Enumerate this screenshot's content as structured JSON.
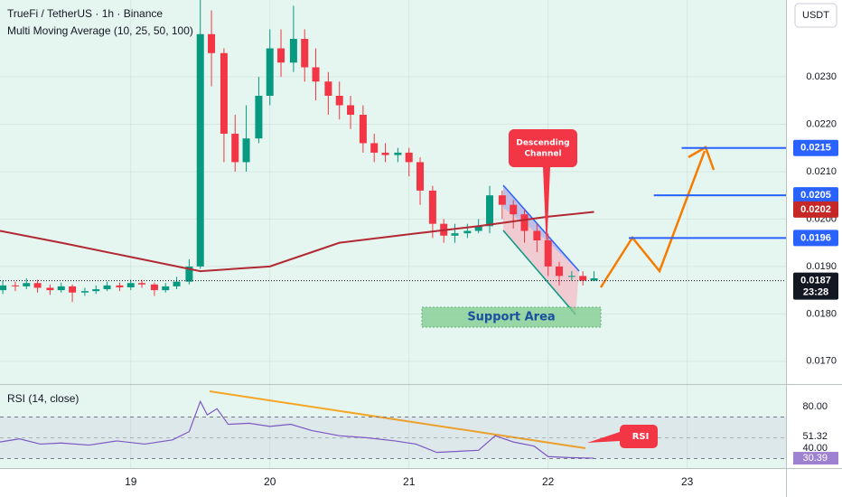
{
  "chart_data": [
    {
      "type": "candlestick",
      "title": "TrueFi / TetherUS · 1h · Binance",
      "subtitle": "Multi Moving Average (10, 25, 50, 100)",
      "unit": "USDT",
      "xlim": [
        18.06,
        23.71
      ],
      "xticks": [
        19,
        20,
        21,
        22,
        23
      ],
      "ylim": [
        0.01652,
        0.02462
      ],
      "yticks": [
        {
          "value": 0.017,
          "label": "0.0170"
        },
        {
          "value": 0.018,
          "label": "0.0180"
        },
        {
          "value": 0.019,
          "label": "0.0190"
        },
        {
          "value": 0.02,
          "label": "0.0200"
        },
        {
          "value": 0.021,
          "label": "0.0210"
        },
        {
          "value": 0.022,
          "label": "0.0220"
        },
        {
          "value": 0.023,
          "label": "0.0230"
        }
      ],
      "grid": true,
      "up_color": "#089981",
      "down_color": "#f23645",
      "candles": {
        "x": [
          18.08,
          18.17,
          18.25,
          18.33,
          18.42,
          18.5,
          18.58,
          18.67,
          18.75,
          18.83,
          18.92,
          19,
          19.08,
          19.17,
          19.25,
          19.33,
          19.42,
          19.5,
          19.58,
          19.67,
          19.75,
          19.83,
          19.92,
          20,
          20.08,
          20.17,
          20.25,
          20.33,
          20.42,
          20.5,
          20.58,
          20.67,
          20.75,
          20.83,
          20.92,
          21,
          21.08,
          21.17,
          21.25,
          21.33,
          21.42,
          21.5,
          21.58,
          21.67,
          21.75,
          21.83,
          21.92,
          22,
          22.08,
          22.17,
          22.25,
          22.33
        ],
        "open": [
          0.0185,
          0.0186,
          0.01858,
          0.01865,
          0.01855,
          0.0185,
          0.01858,
          0.01845,
          0.01848,
          0.01852,
          0.0186,
          0.01856,
          0.01865,
          0.01862,
          0.0185,
          0.01858,
          0.01868,
          0.019,
          0.0239,
          0.0235,
          0.0218,
          0.0212,
          0.0217,
          0.0226,
          0.0236,
          0.0233,
          0.0238,
          0.0232,
          0.0229,
          0.0226,
          0.0224,
          0.0222,
          0.0216,
          0.0214,
          0.02135,
          0.0214,
          0.0212,
          0.0206,
          0.0199,
          0.01965,
          0.0197,
          0.01975,
          0.01985,
          0.0205,
          0.0203,
          0.0201,
          0.01975,
          0.01955,
          0.019,
          0.0188,
          0.0188,
          0.0187
        ],
        "high": [
          0.0187,
          0.01868,
          0.01875,
          0.01872,
          0.01862,
          0.01866,
          0.01862,
          0.01855,
          0.0186,
          0.01868,
          0.01866,
          0.01872,
          0.01872,
          0.01866,
          0.01865,
          0.01878,
          0.01915,
          0.0247,
          0.0244,
          0.0236,
          0.0222,
          0.0224,
          0.023,
          0.024,
          0.024,
          0.0245,
          0.024,
          0.0236,
          0.0231,
          0.0229,
          0.0226,
          0.0224,
          0.0218,
          0.0216,
          0.0215,
          0.0215,
          0.0213,
          0.0207,
          0.02,
          0.0199,
          0.0199,
          0.02,
          0.0207,
          0.0206,
          0.0204,
          0.0202,
          0.0199,
          0.0197,
          0.0191,
          0.0189,
          0.0189,
          0.0189
        ],
        "low": [
          0.01842,
          0.01848,
          0.01852,
          0.01845,
          0.0184,
          0.01845,
          0.01825,
          0.01838,
          0.01842,
          0.01848,
          0.01848,
          0.0185,
          0.01855,
          0.01838,
          0.01845,
          0.01852,
          0.01862,
          0.01895,
          0.0228,
          0.0212,
          0.021,
          0.021,
          0.0216,
          0.0224,
          0.023,
          0.0231,
          0.0229,
          0.0225,
          0.0222,
          0.0221,
          0.0219,
          0.0214,
          0.0212,
          0.0212,
          0.0212,
          0.0209,
          0.0203,
          0.0196,
          0.0195,
          0.0195,
          0.0196,
          0.0197,
          0.0197,
          0.02,
          0.0198,
          0.0195,
          0.0193,
          0.0188,
          0.0186,
          0.0187,
          0.0186,
          0.0187
        ],
        "close": [
          0.0186,
          0.01858,
          0.01865,
          0.01855,
          0.0185,
          0.01858,
          0.01845,
          0.01848,
          0.01852,
          0.0186,
          0.01856,
          0.01865,
          0.01862,
          0.0185,
          0.01858,
          0.01868,
          0.019,
          0.0239,
          0.0235,
          0.0218,
          0.0212,
          0.0217,
          0.0226,
          0.0236,
          0.0233,
          0.0238,
          0.0232,
          0.0229,
          0.0226,
          0.0224,
          0.0222,
          0.0216,
          0.0214,
          0.02135,
          0.0214,
          0.0212,
          0.0206,
          0.0199,
          0.01965,
          0.0197,
          0.01975,
          0.01985,
          0.0205,
          0.0203,
          0.0201,
          0.01975,
          0.01955,
          0.019,
          0.0188,
          0.0188,
          0.0187,
          0.01875
        ]
      },
      "moving_average": {
        "color": "#b22833",
        "x": [
          18.06,
          18.5,
          19,
          19.5,
          20,
          20.5,
          21,
          21.5,
          22,
          22.33
        ],
        "values": [
          0.01975,
          0.0195,
          0.0192,
          0.0189,
          0.019,
          0.0195,
          0.01968,
          0.01985,
          0.02005,
          0.02015
        ]
      },
      "price_labels": [
        {
          "value": 0.0215,
          "label": "0.0215",
          "color": "#2962ff",
          "from_x": 22.96
        },
        {
          "value": 0.0205,
          "label": "0.0205",
          "color": "#2962ff",
          "from_x": 22.76
        },
        {
          "value": 0.0202,
          "label": "0.0202",
          "color": "#c62828"
        },
        {
          "value": 0.0196,
          "label": "0.0196",
          "color": "#2962ff",
          "from_x": 22.58
        },
        {
          "value": 0.0187,
          "label": "0.0187",
          "color": "#131722",
          "countdown": "23:28"
        }
      ],
      "annotations": {
        "channel": [
          "Descending",
          "Channel"
        ],
        "support": "Support Area"
      }
    },
    {
      "type": "line",
      "title": "RSI (14, close)",
      "annotation": "RSI",
      "color": "#7e57c2",
      "xlim": [
        18.06,
        23.71
      ],
      "ylim": [
        20.9,
        101.7
      ],
      "yticks": [
        {
          "value": 80,
          "label": "80.00"
        },
        {
          "value": 40,
          "label": "40.00"
        }
      ],
      "bands": [
        30,
        70
      ],
      "midline": 50,
      "x": [
        18.06,
        18.2,
        18.35,
        18.5,
        18.7,
        18.9,
        19.1,
        19.3,
        19.42,
        19.5,
        19.55,
        19.62,
        19.7,
        19.85,
        20,
        20.15,
        20.3,
        20.5,
        20.7,
        20.9,
        21.05,
        21.2,
        21.35,
        21.5,
        21.62,
        21.75,
        21.9,
        22,
        22.15,
        22.33
      ],
      "values": [
        46,
        49,
        44,
        45,
        43,
        47,
        44,
        48,
        56,
        85,
        72,
        78,
        63,
        64,
        61,
        63,
        57,
        52,
        50,
        47,
        44,
        36,
        37,
        38,
        52,
        46,
        42,
        32,
        31,
        30.39
      ],
      "markers": [
        {
          "value": 51.32,
          "label": "51.32",
          "color": "#131722"
        },
        {
          "value": 30.39,
          "label": "30.39",
          "color": "#7e57c2"
        }
      ]
    }
  ]
}
